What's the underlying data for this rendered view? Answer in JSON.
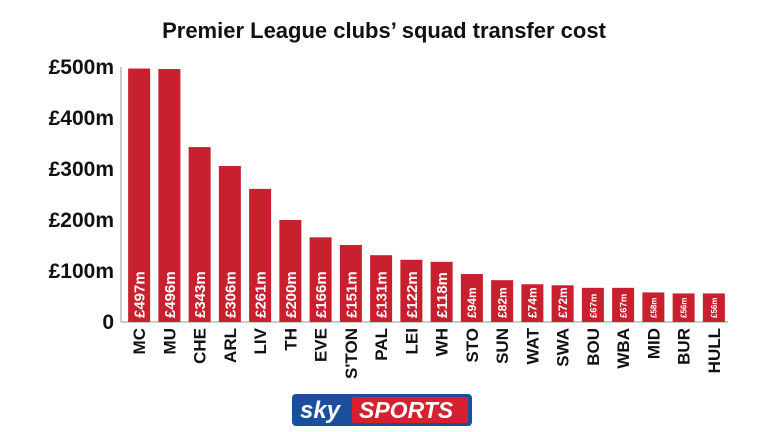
{
  "chart_data": {
    "type": "bar",
    "title": "Premier League clubs’ squad transfer cost",
    "xlabel": "",
    "ylabel": "",
    "ylim": [
      0,
      500
    ],
    "yticks": [
      0,
      100,
      200,
      300,
      400,
      500
    ],
    "ytick_labels": [
      "0",
      "£100m",
      "£200m",
      "£300m",
      "£400m",
      "£500m"
    ],
    "grid": false,
    "bar_color": "#c8202f",
    "categories": [
      "MC",
      "MU",
      "CHE",
      "ARL",
      "LIV",
      "TH",
      "EVE",
      "S'TON",
      "PAL",
      "LEI",
      "WH",
      "STO",
      "SUN",
      "WAT",
      "SWA",
      "BOU",
      "WBA",
      "MID",
      "BUR",
      "HULL"
    ],
    "values": [
      497,
      496,
      343,
      306,
      261,
      200,
      166,
      151,
      131,
      122,
      118,
      94,
      82,
      74,
      72,
      67,
      67,
      58,
      56,
      56
    ],
    "data_labels": [
      "£497m",
      "£496m",
      "£343m",
      "£306m",
      "£261m",
      "£200m",
      "£166m",
      "£151m",
      "£131m",
      "£122m",
      "£118m",
      "£94m",
      "£82m",
      "£74m",
      "£72m",
      "£67m",
      "£67m",
      "£58m",
      "£56m",
      "£56m"
    ]
  },
  "logo": {
    "sky": "sky",
    "sports": "SPORTS",
    "primary_color": "#1b4f9c",
    "accent_color": "#d6202f"
  }
}
